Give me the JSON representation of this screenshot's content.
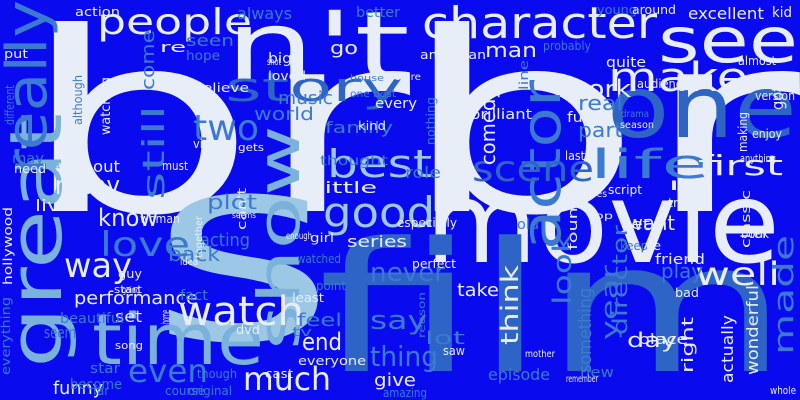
{
  "palette": {
    "background": "#0a0aee",
    "white": "#e8eef8",
    "light_blue": "#9cc8e6",
    "sky_blue": "#7ab2dc",
    "mid_blue": "#3c7ad2",
    "steel_blue": "#2e64c6",
    "pale": "#c8dcf0"
  },
  "words": [
    {
      "text": "br"
    },
    {
      "text": "br"
    },
    {
      "text": "movie"
    },
    {
      "text": "film"
    },
    {
      "text": "s"
    },
    {
      "text": "n't"
    },
    {
      "text": "one"
    },
    {
      "text": "see"
    },
    {
      "text": "character"
    },
    {
      "text": "great"
    },
    {
      "text": "show"
    },
    {
      "text": "time"
    },
    {
      "text": "really"
    },
    {
      "text": "people"
    },
    {
      "text": "make"
    },
    {
      "text": "actor"
    },
    {
      "text": "story"
    },
    {
      "text": "scene"
    },
    {
      "text": "life"
    },
    {
      "text": "good"
    },
    {
      "text": "watch"
    },
    {
      "text": "well"
    },
    {
      "text": "way"
    },
    {
      "text": "best"
    },
    {
      "text": "love"
    },
    {
      "text": "much"
    },
    {
      "text": "first"
    },
    {
      "text": "think"
    },
    {
      "text": "still"
    },
    {
      "text": "two"
    },
    {
      "text": "many"
    },
    {
      "text": "made"
    },
    {
      "text": "know"
    },
    {
      "text": "even"
    },
    {
      "text": "work"
    },
    {
      "text": "look"
    },
    {
      "text": "thing"
    },
    {
      "text": "say"
    },
    {
      "text": "end"
    },
    {
      "text": "year"
    },
    {
      "text": "director"
    },
    {
      "text": "never"
    },
    {
      "text": "back"
    },
    {
      "text": "performance"
    },
    {
      "text": "acting"
    },
    {
      "text": "plot"
    },
    {
      "text": "comedy"
    },
    {
      "text": "family"
    },
    {
      "text": "part"
    },
    {
      "text": "real"
    },
    {
      "text": "want"
    },
    {
      "text": "play"
    },
    {
      "text": "day"
    },
    {
      "text": "seen"
    },
    {
      "text": "always"
    },
    {
      "text": "come"
    },
    {
      "text": "music"
    },
    {
      "text": "go"
    },
    {
      "text": "man"
    },
    {
      "text": "world"
    },
    {
      "text": "little"
    },
    {
      "text": "series"
    },
    {
      "text": "lot"
    },
    {
      "text": "take"
    },
    {
      "text": "feel"
    },
    {
      "text": "give"
    },
    {
      "text": "episode"
    },
    {
      "text": "something"
    },
    {
      "text": "funny"
    },
    {
      "text": "seem"
    },
    {
      "text": "live"
    },
    {
      "text": "without"
    },
    {
      "text": "set"
    },
    {
      "text": "fact"
    },
    {
      "text": "right"
    },
    {
      "text": "actually"
    },
    {
      "text": "wonderful"
    },
    {
      "text": "excellent"
    },
    {
      "text": "role"
    },
    {
      "text": "friend"
    },
    {
      "text": "quite"
    },
    {
      "text": "yet"
    },
    {
      "text": "old"
    },
    {
      "text": "every"
    },
    {
      "text": "fun"
    },
    {
      "text": "place"
    },
    {
      "text": "new"
    },
    {
      "text": "got"
    },
    {
      "text": "kid"
    },
    {
      "text": "star"
    },
    {
      "text": "may"
    },
    {
      "text": "become"
    },
    {
      "text": "hollywood"
    },
    {
      "text": "watching"
    },
    {
      "text": "big"
    },
    {
      "text": "american"
    },
    {
      "text": "young"
    },
    {
      "text": "action"
    },
    {
      "text": "better"
    },
    {
      "text": "around"
    },
    {
      "text": "hope"
    },
    {
      "text": "woman"
    },
    {
      "text": "classic"
    },
    {
      "text": "bad"
    },
    {
      "text": "thought"
    },
    {
      "text": "everyone"
    },
    {
      "text": "beautiful"
    },
    {
      "text": "re"
    },
    {
      "text": "loved"
    },
    {
      "text": "believe"
    },
    {
      "text": "need"
    },
    {
      "text": "enjoy"
    },
    {
      "text": "version"
    },
    {
      "text": "point"
    },
    {
      "text": "dvd"
    },
    {
      "text": "tv"
    },
    {
      "text": "course"
    },
    {
      "text": "original"
    },
    {
      "text": "cast"
    },
    {
      "text": "amazing"
    },
    {
      "text": "saw"
    },
    {
      "text": "least"
    },
    {
      "text": "start"
    },
    {
      "text": "probably"
    },
    {
      "text": "almost"
    },
    {
      "text": "brilliant"
    },
    {
      "text": "guy"
    },
    {
      "text": "especially"
    },
    {
      "text": "girl"
    },
    {
      "text": "watched"
    },
    {
      "text": "perfect"
    },
    {
      "text": "found"
    },
    {
      "text": "keep"
    },
    {
      "text": "ve"
    },
    {
      "text": "book"
    },
    {
      "text": "tell"
    },
    {
      "text": "kind"
    },
    {
      "text": "audience"
    },
    {
      "text": "making"
    },
    {
      "text": "everything"
    },
    {
      "text": "far"
    },
    {
      "text": "different"
    },
    {
      "text": "although"
    },
    {
      "text": "put"
    },
    {
      "text": "must"
    },
    {
      "text": "nothing"
    },
    {
      "text": "hard"
    },
    {
      "text": "viewer"
    },
    {
      "text": "gets"
    },
    {
      "text": "line"
    },
    {
      "text": "last"
    },
    {
      "text": "script"
    },
    {
      "text": "ll"
    },
    {
      "text": "true"
    },
    {
      "text": "whole"
    },
    {
      "text": "anything"
    },
    {
      "text": "song"
    },
    {
      "text": "though"
    },
    {
      "text": "mother"
    },
    {
      "text": "remember"
    },
    {
      "text": "together"
    },
    {
      "text": "idea"
    },
    {
      "text": "picture"
    },
    {
      "text": "drama"
    },
    {
      "text": "season"
    },
    {
      "text": "enough"
    },
    {
      "text": "one best"
    },
    {
      "text": "reason"
    },
    {
      "text": "going"
    },
    {
      "text": "shot"
    },
    {
      "text": "mind"
    },
    {
      "text": "top"
    },
    {
      "text": "goes"
    },
    {
      "text": "house"
    },
    {
      "text": "seems"
    },
    {
      "text": "home"
    },
    {
      "text": "can't"
    },
    {
      "text": "u"
    },
    {
      "text": "ca n't"
    }
  ]
}
